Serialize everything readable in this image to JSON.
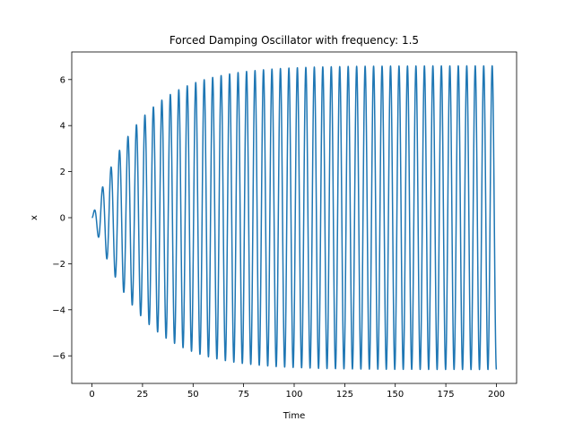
{
  "chart_data": {
    "type": "line",
    "title": "Forced Damping Oscillator with frequency: 1.5",
    "xlabel": "Time",
    "ylabel": "x",
    "xlim": [
      -10,
      210
    ],
    "ylim": [
      -7.2,
      7.2
    ],
    "xticks": [
      "0",
      "25",
      "50",
      "75",
      "100",
      "125",
      "150",
      "175",
      "200"
    ],
    "yticks": [
      "−6",
      "−4",
      "−2",
      "0",
      "2",
      "4",
      "6"
    ],
    "grid": false,
    "legend": "none",
    "series": [
      {
        "color": "#1f77b4",
        "model": {
          "frequency": 1.5,
          "steady_amplitude": 6.6,
          "decay_rate": 0.043,
          "t_start": 0,
          "t_end": 200,
          "x_start": 0
        }
      }
    ]
  }
}
